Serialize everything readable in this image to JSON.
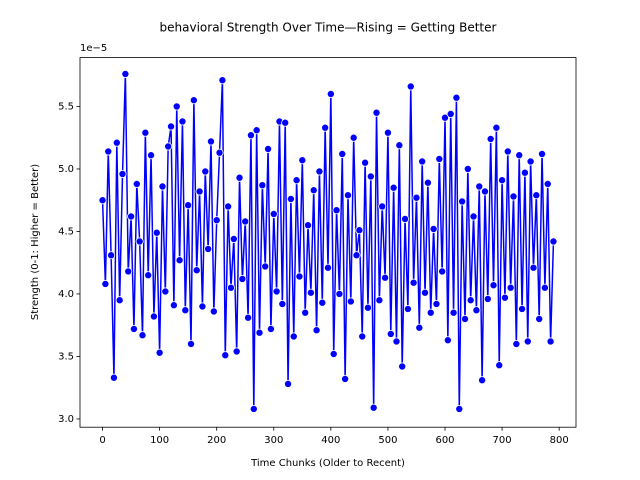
{
  "chart_data": {
    "type": "line",
    "title": "behavioral Strength Over Time—Rising = Getting Better",
    "x_label": "Time Chunks (Older to Recent)",
    "y_label": "Strength (0-1: Higher = Better)",
    "y_offset_label": "1e−5",
    "series": [
      {
        "color": "#0000ff",
        "marker_edge": "#ffffff",
        "x": [
          0,
          5,
          10,
          15,
          20,
          25,
          30,
          35,
          40,
          45,
          50,
          55,
          60,
          65,
          70,
          75,
          80,
          85,
          90,
          95,
          100,
          105,
          110,
          115,
          120,
          125,
          130,
          135,
          140,
          145,
          150,
          155,
          160,
          165,
          170,
          175,
          180,
          185,
          190,
          195,
          200,
          205,
          210,
          215,
          220,
          225,
          230,
          235,
          240,
          245,
          250,
          255,
          260,
          265,
          270,
          275,
          280,
          285,
          290,
          295,
          300,
          305,
          310,
          315,
          320,
          325,
          330,
          335,
          340,
          345,
          350,
          355,
          360,
          365,
          370,
          375,
          380,
          385,
          390,
          395,
          400,
          405,
          410,
          415,
          420,
          425,
          430,
          435,
          440,
          445,
          450,
          455,
          460,
          465,
          470,
          475,
          480,
          485,
          490,
          495,
          500,
          505,
          510,
          515,
          520,
          525,
          530,
          535,
          540,
          545,
          550,
          555,
          560,
          565,
          570,
          575,
          580,
          585,
          590,
          595,
          600,
          605,
          610,
          615,
          620,
          625,
          630,
          635,
          640,
          645,
          650,
          655,
          660,
          665,
          670,
          675,
          680,
          685,
          690,
          695,
          700,
          705,
          710,
          715,
          720,
          725,
          730,
          735,
          740,
          745,
          750,
          755,
          760,
          765,
          770,
          775,
          780,
          785,
          790
        ],
        "values": [
          4.75,
          4.08,
          5.14,
          4.31,
          3.33,
          5.21,
          3.95,
          4.96,
          5.76,
          4.18,
          4.62,
          3.72,
          4.88,
          4.42,
          3.67,
          5.29,
          4.15,
          5.11,
          3.82,
          4.49,
          3.53,
          4.86,
          4.02,
          5.18,
          5.34,
          3.91,
          5.5,
          4.27,
          5.38,
          3.87,
          4.71,
          3.6,
          5.55,
          4.19,
          4.82,
          3.9,
          4.98,
          4.36,
          5.22,
          3.86,
          4.59,
          5.13,
          5.71,
          3.51,
          4.7,
          4.05,
          4.44,
          3.54,
          4.93,
          4.12,
          4.58,
          3.81,
          5.27,
          3.08,
          5.31,
          3.69,
          4.87,
          4.22,
          5.16,
          3.72,
          4.64,
          4.02,
          5.38,
          3.92,
          5.37,
          3.28,
          4.76,
          3.66,
          4.91,
          4.14,
          5.07,
          3.85,
          4.55,
          4.01,
          4.83,
          3.71,
          4.98,
          3.93,
          5.33,
          4.21,
          5.6,
          3.52,
          4.67,
          4.0,
          5.12,
          3.32,
          4.79,
          3.94,
          5.25,
          4.31,
          4.51,
          3.66,
          5.05,
          3.89,
          4.94,
          3.09,
          5.45,
          3.95,
          4.7,
          4.13,
          5.29,
          3.68,
          4.85,
          3.62,
          5.19,
          3.42,
          4.6,
          3.88,
          5.66,
          4.09,
          4.77,
          3.73,
          5.06,
          4.01,
          4.89,
          3.85,
          4.52,
          3.92,
          5.08,
          4.18,
          5.41,
          3.63,
          5.44,
          3.85,
          5.57,
          3.08,
          4.74,
          3.8,
          5.0,
          3.95,
          4.62,
          3.87,
          4.86,
          3.31,
          4.82,
          3.96,
          5.24,
          4.07,
          5.33,
          3.43,
          4.91,
          3.97,
          5.14,
          4.05,
          4.78,
          3.6,
          5.11,
          3.88,
          4.97,
          3.62,
          5.06,
          4.21,
          4.79,
          3.8,
          5.12,
          4.05,
          4.88,
          3.62,
          4.42
        ]
      }
    ],
    "xlim": [
      -39.5,
      829.5
    ],
    "ylim": [
      2.934,
      5.891
    ],
    "xticks": [
      0,
      100,
      200,
      300,
      400,
      500,
      600,
      700,
      800
    ],
    "yticks": [
      {
        "value": 3.0,
        "label": "3.0"
      },
      {
        "value": 3.5,
        "label": "3.5"
      },
      {
        "value": 4.0,
        "label": "4.0"
      },
      {
        "value": 4.5,
        "label": "4.5"
      },
      {
        "value": 5.0,
        "label": "5.0"
      },
      {
        "value": 5.5,
        "label": "5.5"
      }
    ]
  }
}
